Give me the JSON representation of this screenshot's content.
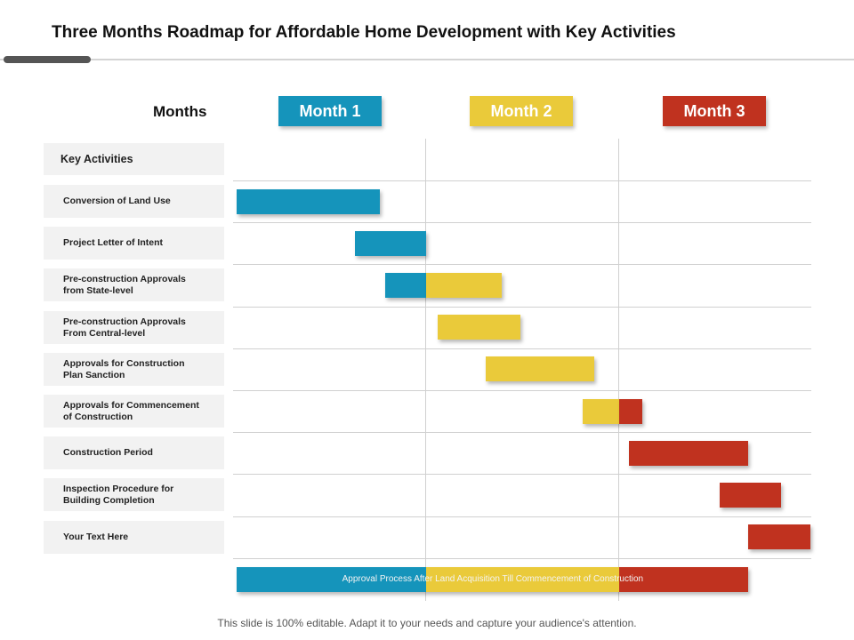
{
  "title": "Three Months Roadmap for Affordable Home Development with Key Activities",
  "months_label": "Months",
  "colors": {
    "month1": "#1594bb",
    "month2": "#eaca3a",
    "month3": "#c0321f"
  },
  "months": [
    {
      "label": "Month 1",
      "color": "#1594bb"
    },
    {
      "label": "Month 2",
      "color": "#eaca3a"
    },
    {
      "label": "Month 3",
      "color": "#c0321f"
    }
  ],
  "key_activities_header": "Key Activities",
  "activities": [
    {
      "label": "Conversion of Land Use",
      "segments": [
        {
          "start": 0.02,
          "end": 0.76,
          "month": 1
        }
      ]
    },
    {
      "label": "Project Letter of Intent",
      "segments": [
        {
          "start": 0.63,
          "end": 1.0,
          "month": 1
        }
      ]
    },
    {
      "label": "Pre-construction Approvals\nfrom State-level",
      "segments": [
        {
          "start": 0.79,
          "end": 1.0,
          "month": 1
        },
        {
          "start": 1.0,
          "end": 1.39,
          "month": 2
        }
      ]
    },
    {
      "label": "Pre-construction Approvals\nFrom Central-level",
      "segments": [
        {
          "start": 1.06,
          "end": 1.49,
          "month": 2
        }
      ]
    },
    {
      "label": "Approvals for Construction\nPlan Sanction",
      "segments": [
        {
          "start": 1.31,
          "end": 1.87,
          "month": 2
        }
      ]
    },
    {
      "label": "Approvals for Commencement\nof Construction",
      "segments": [
        {
          "start": 1.81,
          "end": 2.0,
          "month": 2
        },
        {
          "start": 2.0,
          "end": 2.12,
          "month": 3
        }
      ]
    },
    {
      "label": "Construction Period",
      "segments": [
        {
          "start": 2.05,
          "end": 2.67,
          "month": 3
        }
      ]
    },
    {
      "label": "Inspection Procedure for\nBuilding Completion",
      "segments": [
        {
          "start": 2.52,
          "end": 2.84,
          "month": 3
        }
      ]
    },
    {
      "label": "Your Text Here",
      "segments": [
        {
          "start": 2.67,
          "end": 2.99,
          "month": 3
        }
      ]
    }
  ],
  "bottom_bar": {
    "text": "Approval Process After Land Acquisition Till Commencement of Construction",
    "start": 0.02,
    "end": 2.67
  },
  "footer": "This slide is 100% editable. Adapt it to your needs and capture your audience's attention."
}
